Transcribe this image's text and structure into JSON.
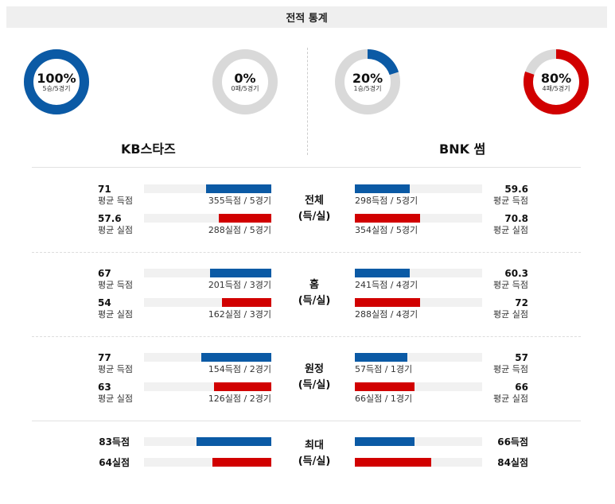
{
  "header": {
    "title": "전적 통계"
  },
  "colors": {
    "blue": "#0b5aa5",
    "red": "#d10000",
    "grey": "#d9d9d9"
  },
  "donuts": [
    {
      "pct": "100%",
      "sub": "5승/5경기",
      "ratio": 1.0,
      "color": "#0b5aa5"
    },
    {
      "pct": "0%",
      "sub": "0패/5경기",
      "ratio": 0.0,
      "color": "#d10000"
    },
    {
      "pct": "20%",
      "sub": "1승/5경기",
      "ratio": 0.2,
      "color": "#0b5aa5"
    },
    {
      "pct": "80%",
      "sub": "4패/5경기",
      "ratio": 0.8,
      "color": "#d10000"
    }
  ],
  "teams": {
    "left": "KB스타즈",
    "right": "BNK 썸"
  },
  "sections": [
    {
      "label1": "전체",
      "label2": "(득/실)",
      "left": [
        {
          "value": "71",
          "label": "평균 득점",
          "caption": "355득점 / 5경기",
          "ratio": 0.51
        },
        {
          "value": "57.6",
          "label": "평균 실점",
          "caption": "288실점 / 5경기",
          "ratio": 0.41
        }
      ],
      "right": [
        {
          "value": "59.6",
          "label": "평균 득점",
          "caption": "298득점 / 5경기",
          "ratio": 0.43
        },
        {
          "value": "70.8",
          "label": "평균 실점",
          "caption": "354실점 / 5경기",
          "ratio": 0.51
        }
      ]
    },
    {
      "label1": "홈",
      "label2": "(득/실)",
      "left": [
        {
          "value": "67",
          "label": "평균 득점",
          "caption": "201득점 / 3경기",
          "ratio": 0.48
        },
        {
          "value": "54",
          "label": "평균 실점",
          "caption": "162실점 / 3경기",
          "ratio": 0.39
        }
      ],
      "right": [
        {
          "value": "60.3",
          "label": "평균 득점",
          "caption": "241득점 / 4경기",
          "ratio": 0.43
        },
        {
          "value": "72",
          "label": "평균 실점",
          "caption": "288실점 / 4경기",
          "ratio": 0.51
        }
      ]
    },
    {
      "label1": "원정",
      "label2": "(득/실)",
      "left": [
        {
          "value": "77",
          "label": "평균 득점",
          "caption": "154득점 / 2경기",
          "ratio": 0.55
        },
        {
          "value": "63",
          "label": "평균 실점",
          "caption": "126실점 / 2경기",
          "ratio": 0.45
        }
      ],
      "right": [
        {
          "value": "57",
          "label": "평균 득점",
          "caption": "57득점 / 1경기",
          "ratio": 0.41
        },
        {
          "value": "66",
          "label": "평균 실점",
          "caption": "66실점 / 1경기",
          "ratio": 0.47
        }
      ]
    }
  ],
  "max": {
    "label1": "최대",
    "label2": "(득/실)",
    "left": [
      {
        "value": "83득점",
        "ratio": 0.59
      },
      {
        "value": "64실점",
        "ratio": 0.46
      }
    ],
    "right": [
      {
        "value": "66득점",
        "ratio": 0.47
      },
      {
        "value": "84실점",
        "ratio": 0.6
      }
    ]
  }
}
